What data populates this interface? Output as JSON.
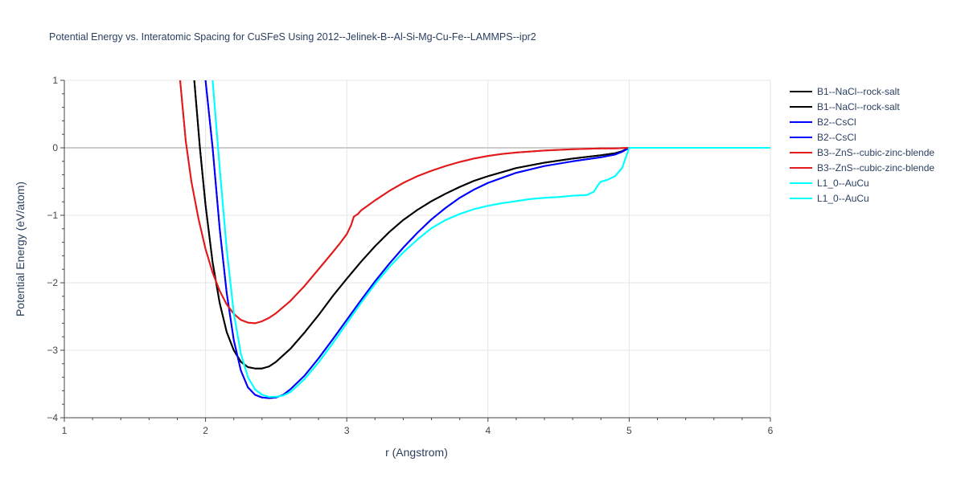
{
  "chart_data": {
    "type": "line",
    "title": "Potential Energy vs. Interatomic Spacing for CuSFeS Using 2012--Jelinek-B--Al-Si-Mg-Cu-Fe--LAMMPS--ipr2",
    "xlabel": "r (Angstrom)",
    "ylabel": "Potential Energy (eV/atom)",
    "xlim": [
      1,
      6
    ],
    "ylim": [
      -4,
      1
    ],
    "xticks": [
      1,
      2,
      3,
      4,
      5,
      6
    ],
    "yticks": [
      1,
      0,
      -1,
      -2,
      -3,
      -4
    ],
    "ytick_labels": [
      "1",
      "0",
      "−1",
      "−2",
      "−3",
      "−4"
    ],
    "grid": true,
    "legend_position": "right",
    "series": [
      {
        "name": "B1--NaCl--rock-salt",
        "color": "#000000",
        "x": [
          1.92,
          1.96,
          2.0,
          2.05,
          2.1,
          2.15,
          2.2,
          2.25,
          2.3,
          2.35,
          2.4,
          2.45,
          2.5,
          2.6,
          2.7,
          2.8,
          2.9,
          3.0,
          3.1,
          3.2,
          3.3,
          3.4,
          3.5,
          3.6,
          3.7,
          3.8,
          3.9,
          4.0,
          4.2,
          4.4,
          4.6,
          4.8,
          4.9,
          4.95,
          5.0
        ],
        "y": [
          1.0,
          0.0,
          -0.85,
          -1.7,
          -2.3,
          -2.73,
          -3.0,
          -3.17,
          -3.25,
          -3.27,
          -3.27,
          -3.24,
          -3.17,
          -2.98,
          -2.74,
          -2.48,
          -2.2,
          -1.94,
          -1.69,
          -1.46,
          -1.25,
          -1.07,
          -0.92,
          -0.79,
          -0.68,
          -0.58,
          -0.49,
          -0.42,
          -0.3,
          -0.22,
          -0.16,
          -0.11,
          -0.08,
          -0.05,
          0.0
        ]
      },
      {
        "name": "B1--NaCl--rock-salt",
        "color": "#000000",
        "x": [
          1.92,
          1.96,
          2.0,
          2.05,
          2.1,
          2.15,
          2.2,
          2.25,
          2.3,
          2.35,
          2.4,
          2.45,
          2.5,
          2.6,
          2.7,
          2.8,
          2.9,
          3.0,
          3.1,
          3.2,
          3.3,
          3.4,
          3.5,
          3.6,
          3.7,
          3.8,
          3.9,
          4.0,
          4.2,
          4.4,
          4.6,
          4.8,
          4.9,
          4.95,
          5.0
        ],
        "y": [
          1.0,
          0.0,
          -0.85,
          -1.7,
          -2.3,
          -2.73,
          -3.0,
          -3.17,
          -3.25,
          -3.27,
          -3.27,
          -3.24,
          -3.17,
          -2.98,
          -2.74,
          -2.48,
          -2.2,
          -1.94,
          -1.69,
          -1.46,
          -1.25,
          -1.07,
          -0.92,
          -0.79,
          -0.68,
          -0.58,
          -0.49,
          -0.42,
          -0.3,
          -0.22,
          -0.16,
          -0.11,
          -0.08,
          -0.05,
          0.0
        ]
      },
      {
        "name": "B2--CsCl",
        "color": "#0000ff",
        "x": [
          2.0,
          2.05,
          2.1,
          2.15,
          2.2,
          2.25,
          2.3,
          2.35,
          2.4,
          2.45,
          2.5,
          2.55,
          2.6,
          2.7,
          2.8,
          2.9,
          3.0,
          3.1,
          3.2,
          3.3,
          3.4,
          3.5,
          3.6,
          3.7,
          3.8,
          3.9,
          4.0,
          4.2,
          4.4,
          4.6,
          4.8,
          4.9,
          4.95,
          5.0
        ],
        "y": [
          1.0,
          0.0,
          -1.2,
          -2.15,
          -2.85,
          -3.3,
          -3.55,
          -3.66,
          -3.7,
          -3.71,
          -3.7,
          -3.66,
          -3.58,
          -3.38,
          -3.12,
          -2.84,
          -2.55,
          -2.26,
          -1.98,
          -1.72,
          -1.48,
          -1.26,
          -1.06,
          -0.89,
          -0.74,
          -0.62,
          -0.52,
          -0.37,
          -0.27,
          -0.2,
          -0.14,
          -0.1,
          -0.06,
          0.0
        ]
      },
      {
        "name": "B2--CsCl",
        "color": "#0000ff",
        "x": [
          2.0,
          2.05,
          2.1,
          2.15,
          2.2,
          2.25,
          2.3,
          2.35,
          2.4,
          2.45,
          2.5,
          2.55,
          2.6,
          2.7,
          2.8,
          2.9,
          3.0,
          3.1,
          3.2,
          3.3,
          3.4,
          3.5,
          3.6,
          3.7,
          3.8,
          3.9,
          4.0,
          4.2,
          4.4,
          4.6,
          4.8,
          4.9,
          4.95,
          5.0
        ],
        "y": [
          1.0,
          0.0,
          -1.2,
          -2.15,
          -2.85,
          -3.3,
          -3.55,
          -3.66,
          -3.7,
          -3.71,
          -3.7,
          -3.66,
          -3.58,
          -3.38,
          -3.12,
          -2.84,
          -2.55,
          -2.26,
          -1.98,
          -1.72,
          -1.48,
          -1.26,
          -1.06,
          -0.89,
          -0.74,
          -0.62,
          -0.52,
          -0.37,
          -0.27,
          -0.2,
          -0.14,
          -0.1,
          -0.06,
          0.0
        ]
      },
      {
        "name": "B3--ZnS--cubic-zinc-blende",
        "color": "#e31a1c",
        "x": [
          1.82,
          1.86,
          1.9,
          1.95,
          2.0,
          2.05,
          2.1,
          2.15,
          2.2,
          2.25,
          2.3,
          2.35,
          2.4,
          2.45,
          2.5,
          2.6,
          2.7,
          2.8,
          2.9,
          2.95,
          3.0,
          3.03,
          3.05,
          3.08,
          3.1,
          3.2,
          3.3,
          3.4,
          3.5,
          3.6,
          3.7,
          3.8,
          3.9,
          4.0,
          4.1,
          4.2,
          4.4,
          4.6,
          4.8,
          4.9,
          5.0
        ],
        "y": [
          1.0,
          0.1,
          -0.5,
          -1.05,
          -1.5,
          -1.85,
          -2.12,
          -2.32,
          -2.46,
          -2.55,
          -2.59,
          -2.6,
          -2.57,
          -2.52,
          -2.45,
          -2.27,
          -2.05,
          -1.8,
          -1.55,
          -1.42,
          -1.28,
          -1.15,
          -1.02,
          -0.98,
          -0.93,
          -0.78,
          -0.64,
          -0.52,
          -0.42,
          -0.34,
          -0.27,
          -0.21,
          -0.16,
          -0.12,
          -0.09,
          -0.07,
          -0.04,
          -0.02,
          -0.01,
          -0.01,
          0.0
        ]
      },
      {
        "name": "B3--ZnS--cubic-zinc-blende",
        "color": "#e31a1c",
        "x": [
          1.82,
          1.86,
          1.9,
          1.95,
          2.0,
          2.05,
          2.1,
          2.15,
          2.2,
          2.25,
          2.3,
          2.35,
          2.4,
          2.45,
          2.5,
          2.6,
          2.7,
          2.8,
          2.9,
          2.95,
          3.0,
          3.03,
          3.05,
          3.08,
          3.1,
          3.2,
          3.3,
          3.4,
          3.5,
          3.6,
          3.7,
          3.8,
          3.9,
          4.0,
          4.1,
          4.2,
          4.4,
          4.6,
          4.8,
          4.9,
          5.0
        ],
        "y": [
          1.0,
          0.1,
          -0.5,
          -1.05,
          -1.5,
          -1.85,
          -2.12,
          -2.32,
          -2.46,
          -2.55,
          -2.59,
          -2.6,
          -2.57,
          -2.52,
          -2.45,
          -2.27,
          -2.05,
          -1.8,
          -1.55,
          -1.42,
          -1.28,
          -1.15,
          -1.02,
          -0.98,
          -0.93,
          -0.78,
          -0.64,
          -0.52,
          -0.42,
          -0.34,
          -0.27,
          -0.21,
          -0.16,
          -0.12,
          -0.09,
          -0.07,
          -0.04,
          -0.02,
          -0.01,
          -0.01,
          0.0
        ]
      },
      {
        "name": "L1_0--AuCu",
        "color": "#00ffff",
        "x": [
          2.05,
          2.1,
          2.15,
          2.2,
          2.25,
          2.3,
          2.35,
          2.4,
          2.45,
          2.5,
          2.55,
          2.6,
          2.7,
          2.8,
          2.9,
          3.0,
          3.1,
          3.2,
          3.3,
          3.4,
          3.5,
          3.6,
          3.7,
          3.8,
          3.9,
          4.0,
          4.1,
          4.2,
          4.3,
          4.4,
          4.5,
          4.6,
          4.7,
          4.75,
          4.78,
          4.8,
          4.82,
          4.85,
          4.9,
          4.95,
          5.0,
          5.5,
          6.0
        ],
        "y": [
          1.0,
          -0.3,
          -1.5,
          -2.45,
          -3.05,
          -3.4,
          -3.58,
          -3.66,
          -3.69,
          -3.69,
          -3.67,
          -3.62,
          -3.43,
          -3.18,
          -2.9,
          -2.6,
          -2.3,
          -2.02,
          -1.77,
          -1.55,
          -1.36,
          -1.19,
          -1.07,
          -0.98,
          -0.91,
          -0.86,
          -0.82,
          -0.79,
          -0.76,
          -0.74,
          -0.73,
          -0.71,
          -0.7,
          -0.65,
          -0.55,
          -0.5,
          -0.49,
          -0.47,
          -0.42,
          -0.3,
          0.0,
          0.0,
          0.0
        ]
      },
      {
        "name": "L1_0--AuCu",
        "color": "#00ffff",
        "x": [
          2.05,
          2.1,
          2.15,
          2.2,
          2.25,
          2.3,
          2.35,
          2.4,
          2.45,
          2.5,
          2.55,
          2.6,
          2.7,
          2.8,
          2.9,
          3.0,
          3.1,
          3.2,
          3.3,
          3.4,
          3.5,
          3.6,
          3.7,
          3.8,
          3.9,
          4.0,
          4.1,
          4.2,
          4.3,
          4.4,
          4.5,
          4.6,
          4.7,
          4.75,
          4.78,
          4.8,
          4.82,
          4.85,
          4.9,
          4.95,
          5.0,
          5.5,
          6.0
        ],
        "y": [
          1.0,
          -0.3,
          -1.5,
          -2.45,
          -3.05,
          -3.4,
          -3.58,
          -3.66,
          -3.69,
          -3.69,
          -3.67,
          -3.62,
          -3.43,
          -3.18,
          -2.9,
          -2.6,
          -2.3,
          -2.02,
          -1.77,
          -1.55,
          -1.36,
          -1.19,
          -1.07,
          -0.98,
          -0.91,
          -0.86,
          -0.82,
          -0.79,
          -0.76,
          -0.74,
          -0.73,
          -0.71,
          -0.7,
          -0.65,
          -0.55,
          -0.5,
          -0.49,
          -0.47,
          -0.42,
          -0.3,
          0.0,
          0.0,
          0.0
        ]
      }
    ]
  }
}
